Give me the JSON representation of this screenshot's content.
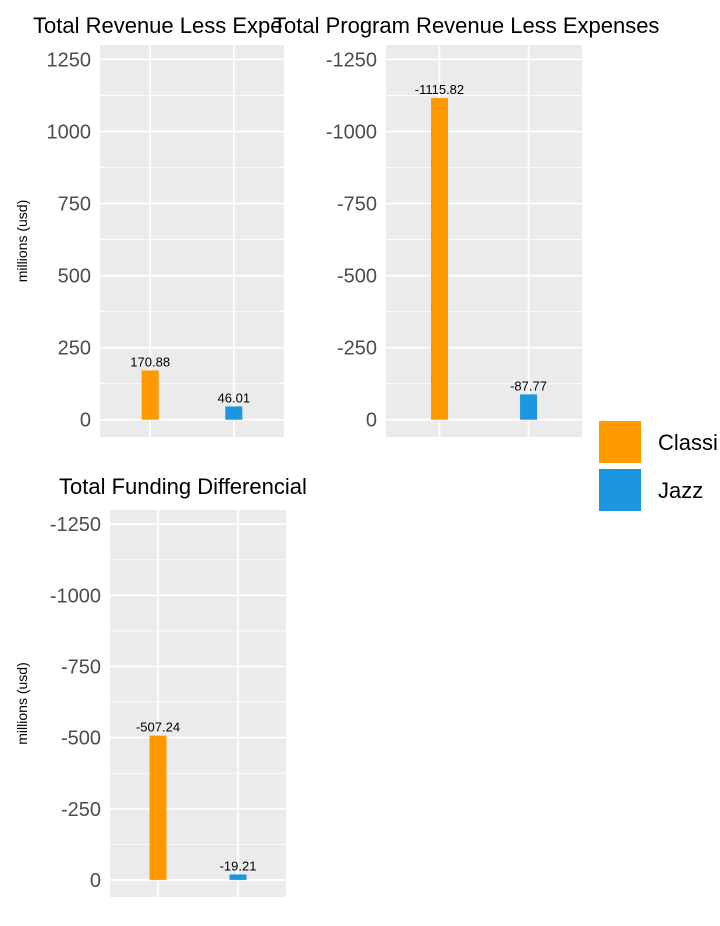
{
  "colors": {
    "panel_bg": "#EBEBEB",
    "grid": "#FFFFFF",
    "tick_text": "#4D4D4D",
    "series": [
      "#FF9900",
      "#1C96E0"
    ]
  },
  "legend": {
    "position": "right",
    "items": [
      {
        "label": "Classi",
        "color": "#FF9900"
      },
      {
        "label": "Jazz",
        "color": "#1C96E0"
      }
    ]
  },
  "chart_data": [
    {
      "type": "bar",
      "title": "Total Revenue Less Expe",
      "ylabel": "millions (usd)",
      "ylim": [
        -60,
        1300
      ],
      "y_reversed": false,
      "yticks": [
        0,
        250,
        500,
        750,
        1000,
        1250
      ],
      "ytick_labels": [
        "0",
        "250",
        "500",
        "750",
        "1000",
        "1250"
      ],
      "categories": [
        "Classi",
        "Jazz"
      ],
      "values": [
        170.88,
        46.01
      ],
      "labels": [
        "170.88",
        "46.01"
      ]
    },
    {
      "type": "bar",
      "title": "Total Program Revenue Less Expenses",
      "ylabel": "",
      "ylim": [
        60,
        -1300
      ],
      "y_reversed": true,
      "yticks": [
        0,
        -250,
        -500,
        -750,
        -1000,
        -1250
      ],
      "ytick_labels": [
        "0",
        "-250",
        "-500",
        "-750",
        "-1000",
        "-1250"
      ],
      "categories": [
        "Classi",
        "Jazz"
      ],
      "values": [
        -1115.82,
        -87.77
      ],
      "labels": [
        "-1115.82",
        "-87.77"
      ]
    },
    {
      "type": "bar",
      "title": "Total Funding Differencial",
      "ylabel": "millions (usd)",
      "ylim": [
        60,
        -1300
      ],
      "y_reversed": true,
      "yticks": [
        0,
        -250,
        -500,
        -750,
        -1000,
        -1250
      ],
      "ytick_labels": [
        "0",
        "-250",
        "-500",
        "-750",
        "-1000",
        "-1250"
      ],
      "categories": [
        "Classi",
        "Jazz"
      ],
      "values": [
        -507.24,
        -19.21
      ],
      "labels": [
        "-507.24",
        "-19.21"
      ]
    }
  ]
}
